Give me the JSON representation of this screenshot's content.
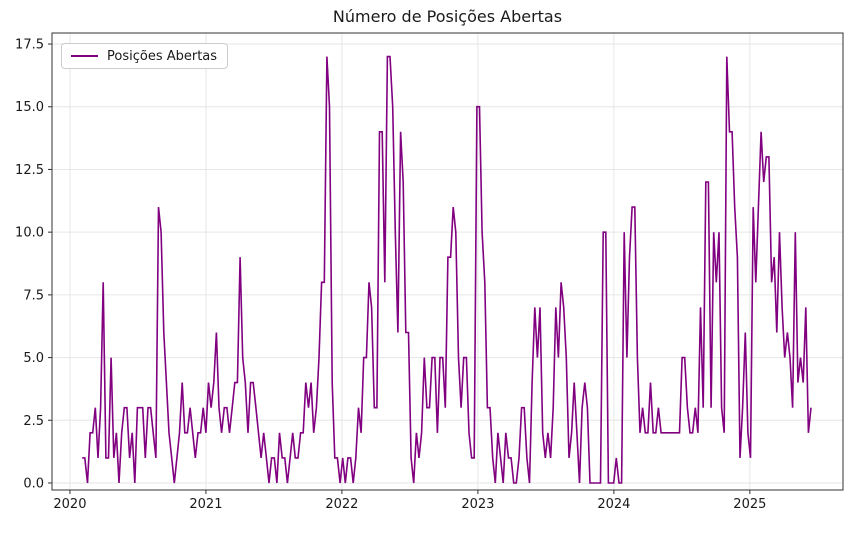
{
  "chart_data": {
    "type": "line",
    "title": "Número de Posições Abertas",
    "legend": [
      "Posições Abertas"
    ],
    "legend_position": "upper left",
    "line_color": "#800080",
    "background_color": "#ffffff",
    "grid": true,
    "grid_color": "#e6e6e6",
    "spine_color": "#333333",
    "tick_label_color": "#1a1a1a",
    "x_axis": {
      "tick_labels": [
        "2020",
        "2021",
        "2022",
        "2023",
        "2024",
        "2025"
      ],
      "tick_values": [
        2020,
        2021,
        2022,
        2023,
        2024,
        2025
      ],
      "xlim": [
        2019.868,
        2025.685
      ]
    },
    "y_axis": {
      "tick_labels": [
        "0.0",
        "2.5",
        "5.0",
        "7.5",
        "10.0",
        "12.5",
        "15.0",
        "17.5"
      ],
      "tick_values": [
        0,
        2.5,
        5,
        7.5,
        10,
        12.5,
        15,
        17.5
      ],
      "ylim": [
        -0.28,
        17.94
      ]
    },
    "series_x_start_year": 2020.09,
    "series_x_end_year": 2025.45,
    "series": [
      {
        "name": "Posições Abertas",
        "values": [
          1,
          1,
          0,
          2,
          2,
          3,
          1,
          3,
          8,
          1,
          1,
          5,
          1,
          2,
          0,
          2,
          3,
          3,
          1,
          2,
          0,
          3,
          3,
          3,
          1,
          3,
          3,
          2,
          1,
          11,
          10,
          6,
          4,
          2,
          1,
          0,
          1,
          2,
          4,
          2,
          2,
          3,
          2,
          1,
          2,
          2,
          3,
          2,
          4,
          3,
          4,
          6,
          3,
          2,
          3,
          3,
          2,
          3,
          4,
          4,
          9,
          5,
          4,
          2,
          4,
          4,
          3,
          2,
          1,
          2,
          1,
          0,
          1,
          1,
          0,
          2,
          1,
          1,
          0,
          1,
          2,
          1,
          1,
          2,
          2,
          4,
          3,
          4,
          2,
          3,
          5,
          8,
          8,
          17,
          15,
          4,
          1,
          1,
          0,
          1,
          0,
          1,
          1,
          0,
          1,
          3,
          2,
          5,
          5,
          8,
          7,
          3,
          3,
          14,
          14,
          8,
          17,
          17,
          15,
          10,
          6,
          14,
          12,
          6,
          6,
          1,
          0,
          2,
          1,
          2,
          5,
          3,
          3,
          5,
          5,
          2,
          5,
          5,
          3,
          9,
          9,
          11,
          10,
          5,
          3,
          5,
          5,
          2,
          1,
          1,
          15,
          15,
          10,
          8,
          3,
          3,
          1,
          0,
          2,
          1,
          0,
          2,
          1,
          1,
          0,
          0,
          1,
          3,
          3,
          1,
          0,
          4,
          7,
          5,
          7,
          2,
          1,
          2,
          1,
          3,
          7,
          5,
          8,
          7,
          5,
          1,
          2,
          4,
          2,
          0,
          3,
          4,
          3,
          0,
          0,
          0,
          0,
          0,
          10,
          10,
          0,
          0,
          0,
          1,
          0,
          0,
          10,
          5,
          9,
          11,
          11,
          5,
          2,
          3,
          2,
          2,
          4,
          2,
          2,
          3,
          2,
          2,
          2,
          2,
          2,
          2,
          2,
          2,
          5,
          5,
          3,
          2,
          2,
          3,
          2,
          7,
          3,
          12,
          12,
          3,
          10,
          8,
          10,
          3,
          2,
          17,
          14,
          14,
          11,
          9,
          1,
          3,
          6,
          2,
          1,
          11,
          8,
          11,
          14,
          12,
          13,
          13,
          8,
          9,
          6,
          10,
          7,
          5,
          6,
          5,
          3,
          10,
          4,
          5,
          4,
          7,
          2,
          3
        ]
      }
    ]
  }
}
